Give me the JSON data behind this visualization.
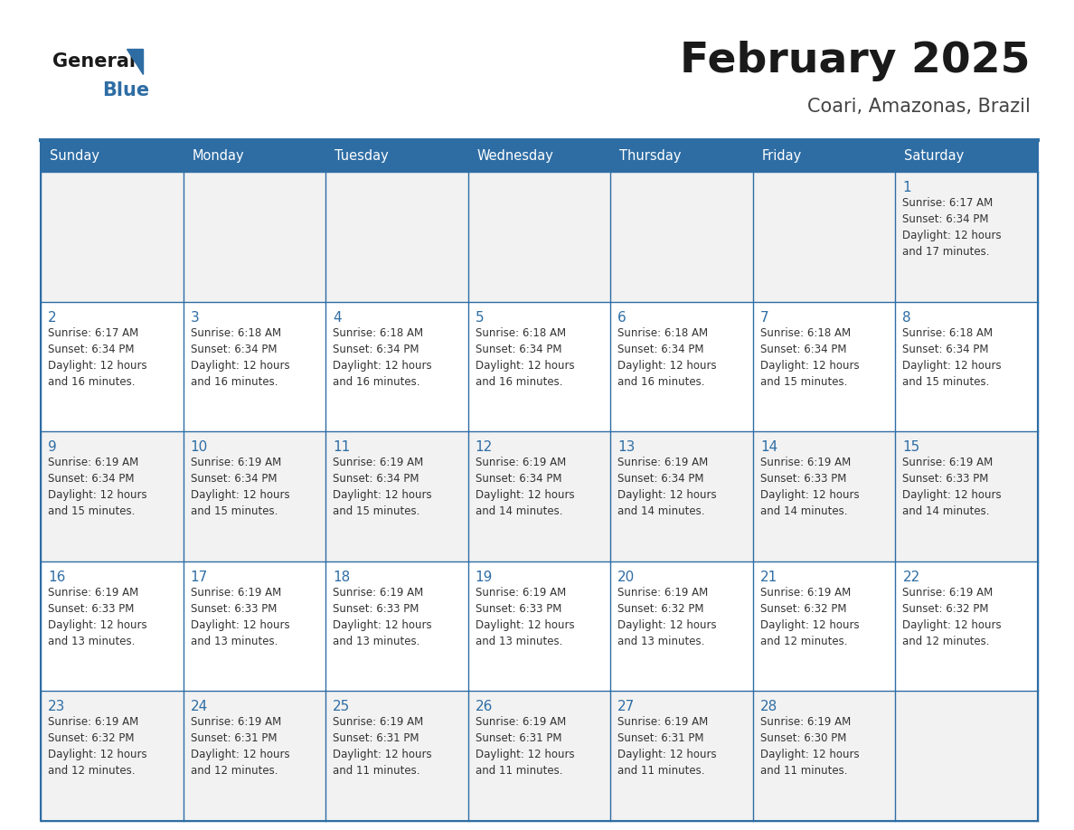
{
  "title": "February 2025",
  "subtitle": "Coari, Amazonas, Brazil",
  "header_bg": "#2E6DA4",
  "header_text_color": "#FFFFFF",
  "cell_bg_odd": "#F2F2F2",
  "cell_bg_even": "#FFFFFF",
  "border_color": "#2E6DA4",
  "day_names": [
    "Sunday",
    "Monday",
    "Tuesday",
    "Wednesday",
    "Thursday",
    "Friday",
    "Saturday"
  ],
  "title_color": "#1a1a1a",
  "subtitle_color": "#444444",
  "day_number_color": "#2E6DA4",
  "info_color": "#333333",
  "logo_general_color": "#1a1a1a",
  "logo_blue_color": "#2E6DA4",
  "logo_triangle_color": "#2E6DA4",
  "calendar": [
    [
      null,
      null,
      null,
      null,
      null,
      null,
      {
        "day": 1,
        "sunrise": "6:17 AM",
        "sunset": "6:34 PM",
        "daylight": "12 hours",
        "daylight2": "and 17 minutes."
      }
    ],
    [
      {
        "day": 2,
        "sunrise": "6:17 AM",
        "sunset": "6:34 PM",
        "daylight": "12 hours",
        "daylight2": "and 16 minutes."
      },
      {
        "day": 3,
        "sunrise": "6:18 AM",
        "sunset": "6:34 PM",
        "daylight": "12 hours",
        "daylight2": "and 16 minutes."
      },
      {
        "day": 4,
        "sunrise": "6:18 AM",
        "sunset": "6:34 PM",
        "daylight": "12 hours",
        "daylight2": "and 16 minutes."
      },
      {
        "day": 5,
        "sunrise": "6:18 AM",
        "sunset": "6:34 PM",
        "daylight": "12 hours",
        "daylight2": "and 16 minutes."
      },
      {
        "day": 6,
        "sunrise": "6:18 AM",
        "sunset": "6:34 PM",
        "daylight": "12 hours",
        "daylight2": "and 16 minutes."
      },
      {
        "day": 7,
        "sunrise": "6:18 AM",
        "sunset": "6:34 PM",
        "daylight": "12 hours",
        "daylight2": "and 15 minutes."
      },
      {
        "day": 8,
        "sunrise": "6:18 AM",
        "sunset": "6:34 PM",
        "daylight": "12 hours",
        "daylight2": "and 15 minutes."
      }
    ],
    [
      {
        "day": 9,
        "sunrise": "6:19 AM",
        "sunset": "6:34 PM",
        "daylight": "12 hours",
        "daylight2": "and 15 minutes."
      },
      {
        "day": 10,
        "sunrise": "6:19 AM",
        "sunset": "6:34 PM",
        "daylight": "12 hours",
        "daylight2": "and 15 minutes."
      },
      {
        "day": 11,
        "sunrise": "6:19 AM",
        "sunset": "6:34 PM",
        "daylight": "12 hours",
        "daylight2": "and 15 minutes."
      },
      {
        "day": 12,
        "sunrise": "6:19 AM",
        "sunset": "6:34 PM",
        "daylight": "12 hours",
        "daylight2": "and 14 minutes."
      },
      {
        "day": 13,
        "sunrise": "6:19 AM",
        "sunset": "6:34 PM",
        "daylight": "12 hours",
        "daylight2": "and 14 minutes."
      },
      {
        "day": 14,
        "sunrise": "6:19 AM",
        "sunset": "6:33 PM",
        "daylight": "12 hours",
        "daylight2": "and 14 minutes."
      },
      {
        "day": 15,
        "sunrise": "6:19 AM",
        "sunset": "6:33 PM",
        "daylight": "12 hours",
        "daylight2": "and 14 minutes."
      }
    ],
    [
      {
        "day": 16,
        "sunrise": "6:19 AM",
        "sunset": "6:33 PM",
        "daylight": "12 hours",
        "daylight2": "and 13 minutes."
      },
      {
        "day": 17,
        "sunrise": "6:19 AM",
        "sunset": "6:33 PM",
        "daylight": "12 hours",
        "daylight2": "and 13 minutes."
      },
      {
        "day": 18,
        "sunrise": "6:19 AM",
        "sunset": "6:33 PM",
        "daylight": "12 hours",
        "daylight2": "and 13 minutes."
      },
      {
        "day": 19,
        "sunrise": "6:19 AM",
        "sunset": "6:33 PM",
        "daylight": "12 hours",
        "daylight2": "and 13 minutes."
      },
      {
        "day": 20,
        "sunrise": "6:19 AM",
        "sunset": "6:32 PM",
        "daylight": "12 hours",
        "daylight2": "and 13 minutes."
      },
      {
        "day": 21,
        "sunrise": "6:19 AM",
        "sunset": "6:32 PM",
        "daylight": "12 hours",
        "daylight2": "and 12 minutes."
      },
      {
        "day": 22,
        "sunrise": "6:19 AM",
        "sunset": "6:32 PM",
        "daylight": "12 hours",
        "daylight2": "and 12 minutes."
      }
    ],
    [
      {
        "day": 23,
        "sunrise": "6:19 AM",
        "sunset": "6:32 PM",
        "daylight": "12 hours",
        "daylight2": "and 12 minutes."
      },
      {
        "day": 24,
        "sunrise": "6:19 AM",
        "sunset": "6:31 PM",
        "daylight": "12 hours",
        "daylight2": "and 12 minutes."
      },
      {
        "day": 25,
        "sunrise": "6:19 AM",
        "sunset": "6:31 PM",
        "daylight": "12 hours",
        "daylight2": "and 11 minutes."
      },
      {
        "day": 26,
        "sunrise": "6:19 AM",
        "sunset": "6:31 PM",
        "daylight": "12 hours",
        "daylight2": "and 11 minutes."
      },
      {
        "day": 27,
        "sunrise": "6:19 AM",
        "sunset": "6:31 PM",
        "daylight": "12 hours",
        "daylight2": "and 11 minutes."
      },
      {
        "day": 28,
        "sunrise": "6:19 AM",
        "sunset": "6:30 PM",
        "daylight": "12 hours",
        "daylight2": "and 11 minutes."
      },
      null
    ]
  ]
}
